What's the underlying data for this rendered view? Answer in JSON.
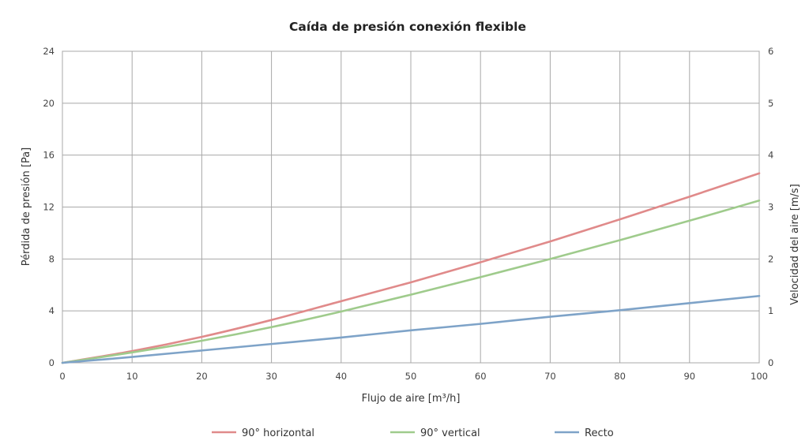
{
  "chart_data": {
    "type": "line",
    "title": "Caída de presión conexión flexible",
    "xlabel": "Flujo de aire [m³/h]",
    "ylabel": "Pérdida de presión [Pa]",
    "y2label": "Velocidad del aire [m/s]",
    "xlim": [
      0,
      100
    ],
    "ylim": [
      0,
      24
    ],
    "y2lim": [
      0,
      6
    ],
    "x_ticks": [
      "0",
      "10",
      "20",
      "30",
      "40",
      "50",
      "60",
      "70",
      "80",
      "90",
      "100"
    ],
    "y_ticks": [
      "0",
      "4",
      "8",
      "12",
      "16",
      "20",
      "24"
    ],
    "y2_ticks": [
      "0",
      "1",
      "2",
      "3",
      "4",
      "5",
      "6"
    ],
    "grid": true,
    "legend_position": "bottom",
    "x": [
      0,
      10,
      20,
      30,
      40,
      50,
      60,
      70,
      80,
      90,
      100
    ],
    "series": [
      {
        "name": "90° horizontal",
        "color": "#e08a8a",
        "values": [
          0,
          0.9,
          2.0,
          3.3,
          4.75,
          6.2,
          7.75,
          9.35,
          11.05,
          12.8,
          14.6
        ]
      },
      {
        "name": "90° vertical",
        "color": "#9fcb8c",
        "values": [
          0,
          0.8,
          1.7,
          2.75,
          3.95,
          5.25,
          6.6,
          8.0,
          9.45,
          10.95,
          12.5
        ]
      },
      {
        "name": "Recto",
        "color": "#7ea3c8",
        "values": [
          0,
          0.45,
          0.95,
          1.45,
          1.95,
          2.5,
          3.0,
          3.55,
          4.05,
          4.6,
          5.15
        ]
      }
    ]
  }
}
